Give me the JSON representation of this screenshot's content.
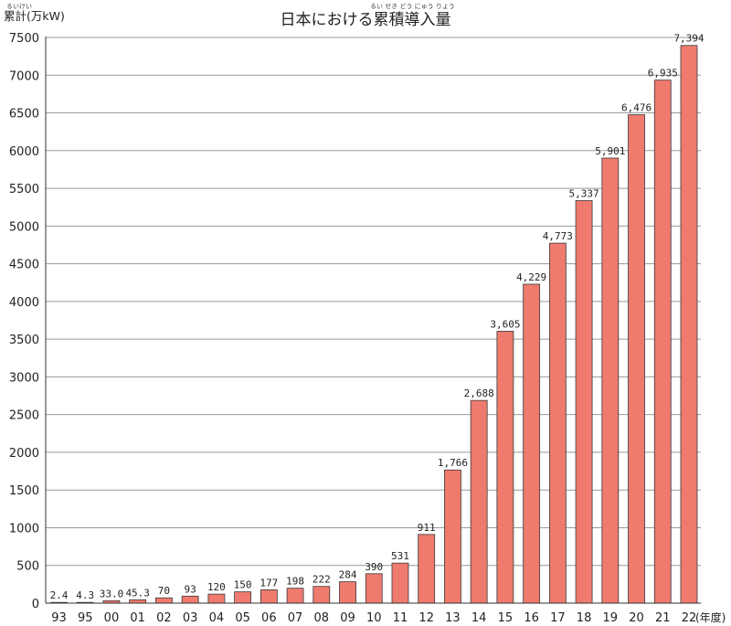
{
  "chart_data": {
    "type": "bar",
    "title": "日本における累積導入量",
    "title_ruby": "るい せき どう にゅう りょう",
    "ylabel": "累計(万kW)",
    "ylabel_ruby": "るいけい",
    "xlabel_unit": "(年度)",
    "ylim": [
      0,
      7500
    ],
    "ytick_step": 500,
    "grid": true,
    "bar_color": "#ef7a6e",
    "bar_edge_color": "#3a3a3a",
    "grid_color": "#999999",
    "categories": [
      "93",
      "95",
      "00",
      "01",
      "02",
      "03",
      "04",
      "05",
      "06",
      "07",
      "08",
      "09",
      "10",
      "11",
      "12",
      "13",
      "14",
      "15",
      "16",
      "17",
      "18",
      "19",
      "20",
      "21",
      "22"
    ],
    "values": [
      2.4,
      4.3,
      33.0,
      45.3,
      70,
      93,
      120,
      150,
      177,
      198,
      222,
      284,
      390,
      531,
      911,
      1766,
      2688,
      3605,
      4229,
      4773,
      5337,
      5901,
      6476,
      6935,
      7394
    ],
    "value_labels": [
      "2.4",
      "4.3",
      "33.0",
      "45.3",
      "70",
      "93",
      "120",
      "150",
      "177",
      "198",
      "222",
      "284",
      "390",
      "531",
      "911",
      "1,766",
      "2,688",
      "3,605",
      "4,229",
      "4,773",
      "5,337",
      "5,901",
      "6,476",
      "6,935",
      "7,394"
    ]
  }
}
